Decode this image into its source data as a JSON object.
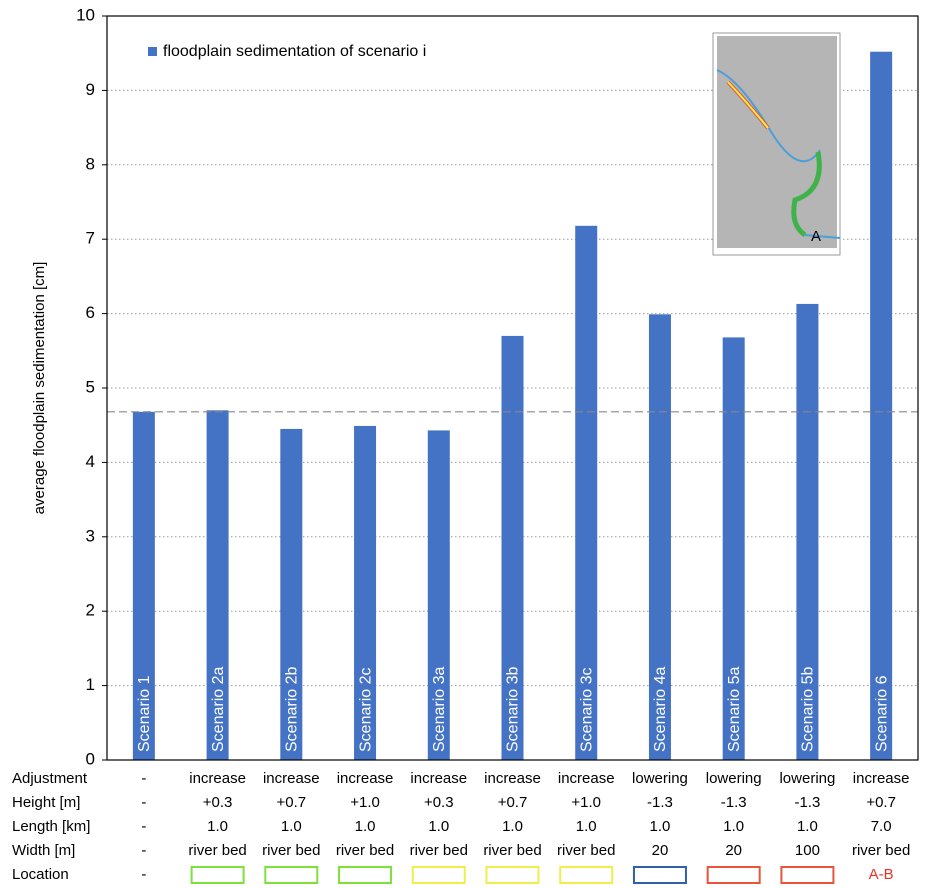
{
  "chart_data": {
    "type": "bar",
    "ylabel": "average floodplain sedimentation [cm]",
    "categories": [
      "Scenario 1",
      "Scenario 2a",
      "Scenario 2b",
      "Scenario 2c",
      "Scenario 3a",
      "Scenario 3b",
      "Scenario 3c",
      "Scenario 4a",
      "Scenario 5a",
      "Scenario 5b",
      "Scenario 6"
    ],
    "series": [
      {
        "name": "floodplain sedimentation of scenario i",
        "color": "#4472c4",
        "values": [
          4.68,
          4.7,
          4.45,
          4.49,
          4.43,
          5.7,
          7.18,
          5.99,
          5.68,
          6.13,
          9.52
        ]
      }
    ],
    "reference_line": 4.68,
    "ylim": [
      0,
      10
    ],
    "yticks": [
      0,
      1,
      2,
      3,
      4,
      5,
      6,
      7,
      8,
      9,
      10
    ],
    "grid": true,
    "legend": "top-left"
  },
  "table": {
    "row_labels": [
      "Adjustment",
      "Height [m]",
      "Length [km]",
      "Width [m]",
      "Location"
    ],
    "rows": [
      [
        "-",
        "increase",
        "increase",
        "increase",
        "increase",
        "increase",
        "increase",
        "lowering",
        "lowering",
        "lowering",
        "increase"
      ],
      [
        "-",
        "+0.3",
        "+0.7",
        "+1.0",
        "+0.3",
        "+0.7",
        "+1.0",
        "-1.3",
        "-1.3",
        "-1.3",
        "+0.7"
      ],
      [
        "-",
        "1.0",
        "1.0",
        "1.0",
        "1.0",
        "1.0",
        "1.0",
        "1.0",
        "1.0",
        "1.0",
        "7.0"
      ],
      [
        "-",
        "river bed",
        "river bed",
        "river bed",
        "river bed",
        "river bed",
        "river bed",
        "20",
        "20",
        "100",
        "river bed"
      ]
    ],
    "location": [
      {
        "label": "-"
      },
      {
        "color": "#7ee03a"
      },
      {
        "color": "#7ee03a"
      },
      {
        "color": "#7ee03a"
      },
      {
        "color": "#f0ee4a"
      },
      {
        "color": "#f0ee4a"
      },
      {
        "color": "#f0ee4a"
      },
      {
        "color": "#2f5fae"
      },
      {
        "color": "#e8553a"
      },
      {
        "color": "#e8553a"
      },
      {
        "label": "A-B",
        "color": "#e8332a"
      }
    ]
  },
  "inset": {
    "label": "A"
  }
}
